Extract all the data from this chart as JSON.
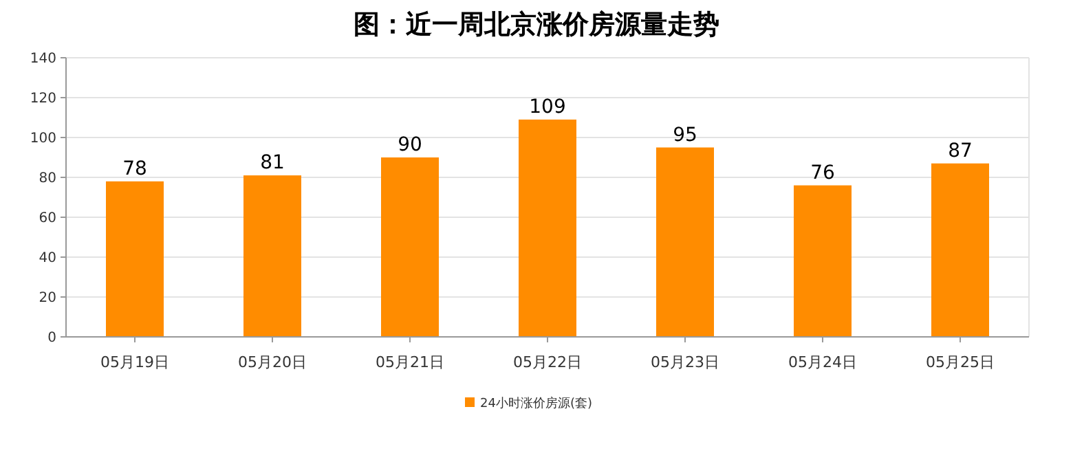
{
  "chart_data": {
    "type": "bar",
    "title": "图：近一周北京涨价房源量走势",
    "categories": [
      "05月19日",
      "05月20日",
      "05月21日",
      "05月22日",
      "05月23日",
      "05月24日",
      "05月25日"
    ],
    "series": [
      {
        "name": "24小时涨价房源(套)",
        "color": "#ff8c00",
        "values": [
          78,
          81,
          90,
          109,
          95,
          76,
          87
        ]
      }
    ],
    "ylim": [
      0,
      140
    ],
    "yticks": [
      0,
      20,
      40,
      60,
      80,
      100,
      120,
      140
    ],
    "grid": "y",
    "legend": "bottom",
    "data_labels": true
  }
}
